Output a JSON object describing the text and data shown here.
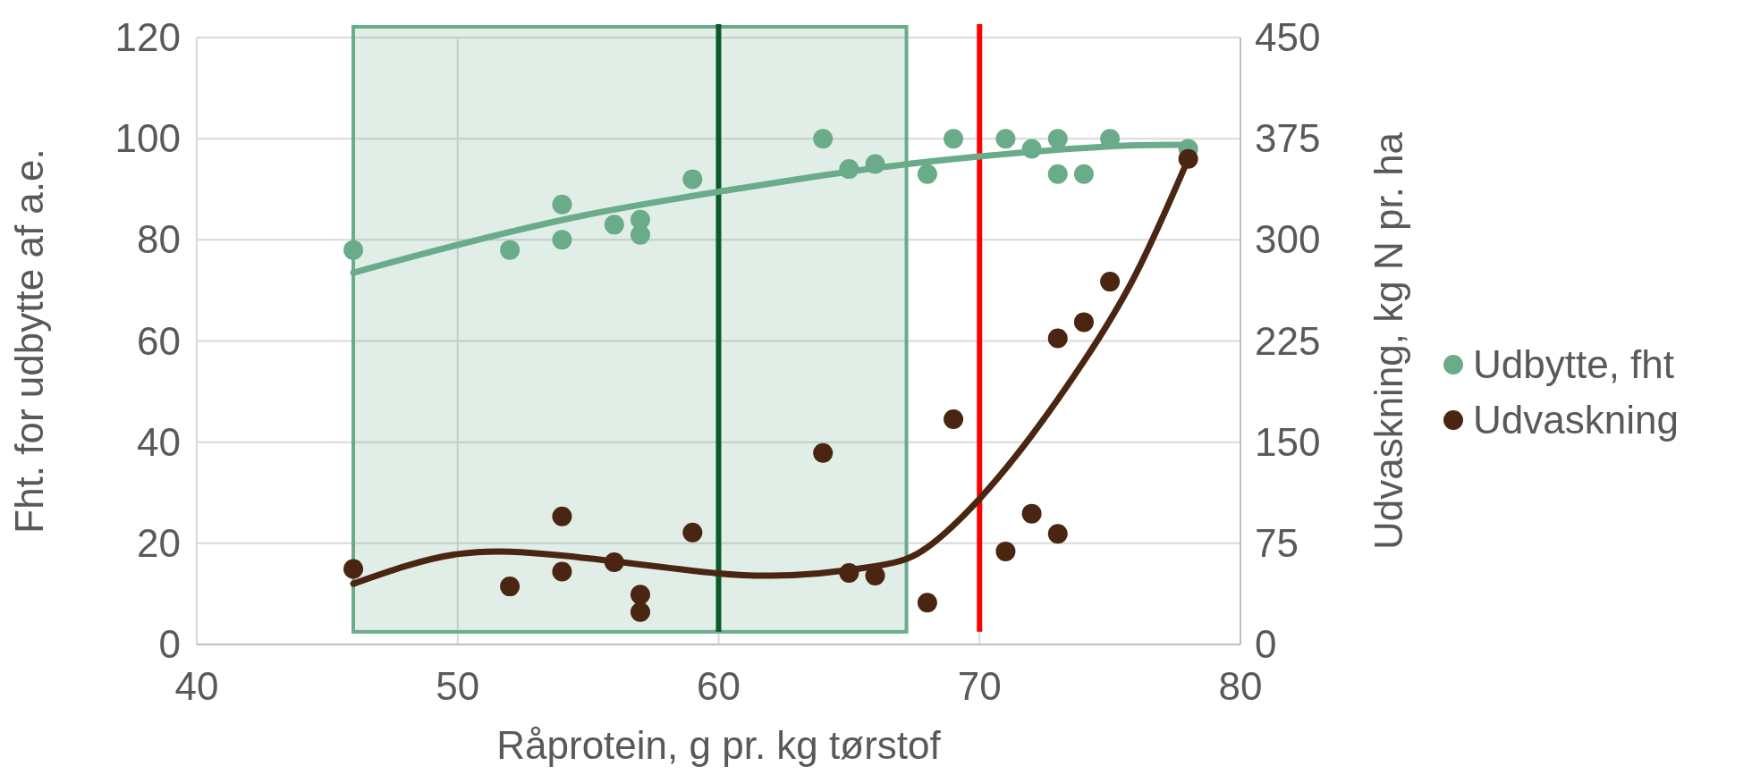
{
  "chart_data": {
    "type": "scatter",
    "xlabel": "Råprotein, g pr. kg tørstof",
    "ylabel": "Fht. for udbytte af a.e.",
    "y2label": "Udvaskning, kg N pr. ha",
    "xlim": [
      40,
      80
    ],
    "xticks": [
      40,
      50,
      60,
      70,
      80
    ],
    "ylim": [
      0,
      120
    ],
    "yticks": [
      0,
      20,
      40,
      60,
      80,
      100,
      120
    ],
    "y2lim": [
      0,
      450
    ],
    "y2ticks": [
      0,
      75,
      150,
      225,
      300,
      375,
      450
    ],
    "grid": true,
    "legend": "right",
    "marker": "circle",
    "bands": [
      {
        "axis": "x",
        "from": 46,
        "to": 67.2,
        "color": "#6aab8a"
      }
    ],
    "ref_lines": [
      {
        "axis": "x",
        "value": 60,
        "color": "#0a5a2a"
      },
      {
        "axis": "x",
        "value": 70,
        "color": "#ff0000"
      }
    ],
    "series": [
      {
        "name": "Udbytte, fht",
        "color": "#6aab8a",
        "x": [
          46,
          52,
          54,
          54,
          56,
          57,
          57,
          59,
          64,
          65,
          66,
          68,
          69,
          71,
          72,
          73,
          73,
          74,
          75,
          78
        ],
        "values": [
          78,
          78,
          87,
          80,
          83,
          84,
          81,
          92,
          100,
          94,
          95,
          93,
          100,
          100,
          98,
          100,
          93,
          93,
          100,
          98
        ]
      },
      {
        "name": "Udvaskning",
        "color": "#4a2511",
        "axis": "y2",
        "x": [
          46,
          52,
          54,
          54,
          56,
          57,
          57,
          59,
          64,
          65,
          66,
          68,
          69,
          71,
          72,
          73,
          73,
          74,
          75,
          78
        ],
        "values": [
          56,
          43,
          95,
          54,
          61,
          37,
          24,
          83,
          142,
          53,
          51,
          31,
          167,
          69,
          97,
          82,
          227,
          239,
          269,
          360
        ]
      },
      {
        "type": "line",
        "marker": "none",
        "color": "#6aab8a",
        "x": [
          46,
          50,
          55,
          60,
          65,
          70,
          75,
          78
        ],
        "values": [
          73.5,
          79,
          85,
          89.5,
          93.5,
          96.5,
          98.5,
          98.8
        ]
      },
      {
        "type": "line",
        "marker": "none",
        "color": "#4a2511",
        "axis": "y2",
        "x": [
          46,
          50,
          54,
          58,
          62,
          66,
          68,
          70,
          72,
          74,
          76,
          78
        ],
        "values": [
          45,
          67,
          66,
          57,
          51,
          58,
          72,
          108,
          155,
          210,
          275,
          360
        ]
      }
    ]
  }
}
